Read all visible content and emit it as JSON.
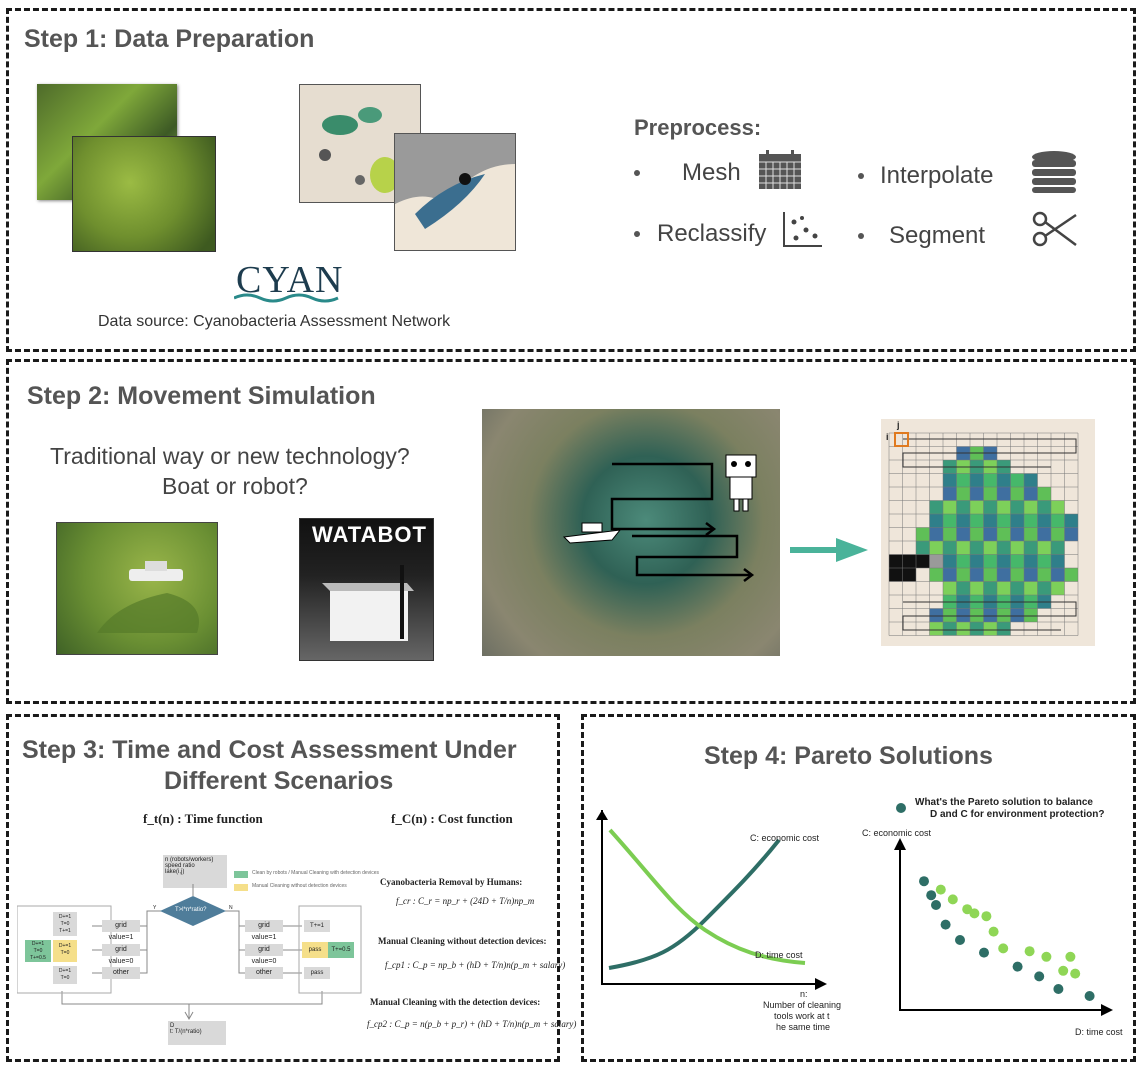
{
  "step1": {
    "title": "Step 1:  Data Preparation",
    "cyan_logo": "CYAN",
    "source": "Data source: Cyanobacteria Assessment Network",
    "preprocess_title": "Preprocess:",
    "items": [
      "Mesh",
      "Interpolate",
      "Reclassify",
      "Segment"
    ]
  },
  "step2": {
    "title": "Step 2:  Movement Simulation",
    "question_line1": "Traditional way or new technology?",
    "question_line2": "Boat or robot?",
    "watabot_logo": "WATABOT",
    "grid_label_i": "i",
    "grid_label_j": "j"
  },
  "step3": {
    "title_line1": "Step 3:  Time and Cost Assessment Under",
    "title_line2": "Different Scenarios",
    "time_fn": "f_t(n) : Time function",
    "cost_fn": "f_C(n) : Cost function",
    "flow": {
      "input_lines": [
        "n (robots/workers)",
        "speed ratio",
        "lake(i,j)"
      ],
      "legend": [
        "Clean by robots / Manual Cleaning with detection devices",
        "Manual Cleaning without detection devices"
      ],
      "decision": "T>l*n*ratio?",
      "y": "Y",
      "n": "N",
      "left_grid1": "grid value=1",
      "left_grid0": "grid value=0",
      "left_other": "other",
      "right_grid1": "grid value=1",
      "right_grid0": "grid value=0",
      "right_other": "other",
      "left_out1": "D+=1\nT=0\nT+=1",
      "left_out2a": "D+=1\nT=0\nT+=0.5",
      "left_out2b": "D+=1\nT=0",
      "left_out3": "D+=1\nT=0",
      "right_out1": "T+=1",
      "right_out2a": "pass",
      "right_out2b": "T+=0.5",
      "right_out3": "pass",
      "output_lines": [
        "D",
        "t: T/(n*ratio)"
      ]
    },
    "eq1_title": "Cyanobacteria Removal by Humans:",
    "eq1": "f_cr : C_r = np_r + (24D + T/n)np_m",
    "eq2_title": "Manual Cleaning without detection devices:",
    "eq2": "f_cp1 : C_p = np_b + (hD + T/n)n(p_m + salary)",
    "eq3_title": "Manual Cleaning with the detection devices:",
    "eq3": "f_cp2 : C_p = n(p_b + p_r) + (hD + T/n)n(p_m + salary)"
  },
  "step4": {
    "title": "Step 4:  Pareto Solutions",
    "left_chart": {
      "series": [
        {
          "name": "C: economic cost",
          "color": "#2e6e66"
        },
        {
          "name": "D: time cost",
          "color": "#7ccd52"
        }
      ],
      "xlabel_lines": [
        "n:",
        "Number of cleaning",
        "tools work at t",
        "he same time"
      ]
    },
    "right_chart": {
      "question_line1": "What's the Pareto solution to balance",
      "question_line2": "D and C for environment protection?",
      "ylabel": "C: economic cost",
      "xlabel": "D: time cost",
      "points_dark": [
        [
          1,
          9.2
        ],
        [
          1.3,
          8.2
        ],
        [
          1.5,
          7.5
        ],
        [
          1.9,
          6.1
        ],
        [
          2.5,
          5.0
        ],
        [
          3.5,
          4.1
        ],
        [
          4.9,
          3.1
        ],
        [
          5.8,
          2.4
        ],
        [
          6.6,
          1.5
        ],
        [
          7.9,
          1.0
        ]
      ],
      "points_light": [
        [
          1.7,
          8.6
        ],
        [
          2.2,
          7.9
        ],
        [
          2.8,
          7.2
        ],
        [
          3.1,
          6.9
        ],
        [
          3.6,
          6.7
        ],
        [
          3.9,
          5.6
        ],
        [
          4.3,
          4.4
        ],
        [
          5.4,
          4.2
        ],
        [
          6.1,
          3.8
        ],
        [
          7.1,
          3.8
        ],
        [
          7.3,
          2.6
        ],
        [
          6.8,
          2.8
        ]
      ],
      "dark_color": "#2e6e66",
      "light_color": "#8fd656"
    }
  }
}
